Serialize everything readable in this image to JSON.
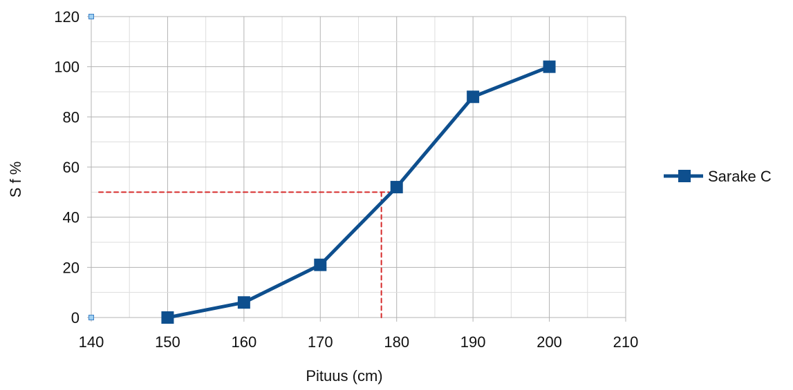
{
  "chart_data": {
    "type": "line",
    "title": "",
    "xlabel": "Pituus (cm)",
    "ylabel": "S f %",
    "xlim": [
      140,
      210
    ],
    "ylim": [
      0,
      120
    ],
    "x_ticks": [
      140,
      150,
      160,
      170,
      180,
      190,
      200,
      210
    ],
    "y_ticks": [
      0,
      20,
      40,
      60,
      80,
      100,
      120
    ],
    "x_minor_step": 5,
    "y_minor_step": 10,
    "grid": true,
    "legend_position": "right",
    "series": [
      {
        "name": "Sarake C",
        "color": "#0e4f8e",
        "marker": "square",
        "x": [
          150,
          160,
          170,
          180,
          190,
          200
        ],
        "y": [
          0,
          6,
          21,
          52,
          88,
          100
        ]
      }
    ],
    "annotations": [
      {
        "type": "hand-drawn-dashed-line",
        "color": "#d62a2a",
        "description": "horizontal guide at 50%",
        "from": [
          141,
          50
        ],
        "to": [
          179,
          50
        ]
      },
      {
        "type": "hand-drawn-dashed-line",
        "color": "#d62a2a",
        "description": "vertical guide at about 178",
        "from": [
          178,
          50
        ],
        "to": [
          178,
          0
        ]
      }
    ]
  }
}
